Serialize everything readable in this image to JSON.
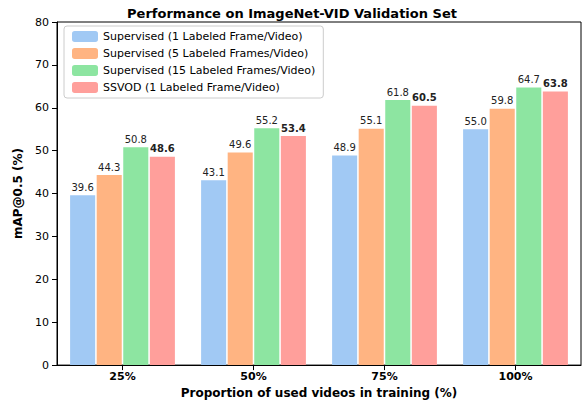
{
  "chart_data": {
    "type": "bar",
    "title": "Performance on ImageNet-VID Validation Set",
    "x_label": "Proportion of used videos in training (%)",
    "y_label": "mAP@0.5 (%)",
    "categories": [
      "25%",
      "50%",
      "75%",
      "100%"
    ],
    "series": [
      {
        "name": "Supervised (1 Labeled Frame/Video)",
        "color": "#a1c9f4",
        "values": [
          39.6,
          43.1,
          48.9,
          55.0
        ],
        "value_labels": [
          "39.6",
          "43.1",
          "48.9",
          "55.0"
        ]
      },
      {
        "name": "Supervised (5 Labeled Frames/Video)",
        "color": "#ffb482",
        "values": [
          44.3,
          49.6,
          55.1,
          59.8
        ],
        "value_labels": [
          "44.3",
          "49.6",
          "55.1",
          "59.8"
        ]
      },
      {
        "name": "Supervised (15 Labeled Frames/Video)",
        "color": "#8de5a1",
        "values": [
          50.8,
          55.2,
          61.8,
          64.7
        ],
        "value_labels": [
          "50.8",
          "55.2",
          "61.8",
          "64.7"
        ]
      },
      {
        "name": "SSVOD (1 Labeled Frame/Video)",
        "color": "#ff9f9b",
        "values": [
          48.6,
          53.4,
          60.5,
          63.8
        ],
        "value_labels": [
          "48.6",
          "53.4",
          "60.5",
          "63.8"
        ]
      }
    ],
    "ylim": [
      0,
      80
    ],
    "yticks": [
      0,
      10,
      20,
      30,
      40,
      50,
      60,
      70,
      80
    ],
    "grid": false,
    "legend": "upper left",
    "data_labels": true
  }
}
